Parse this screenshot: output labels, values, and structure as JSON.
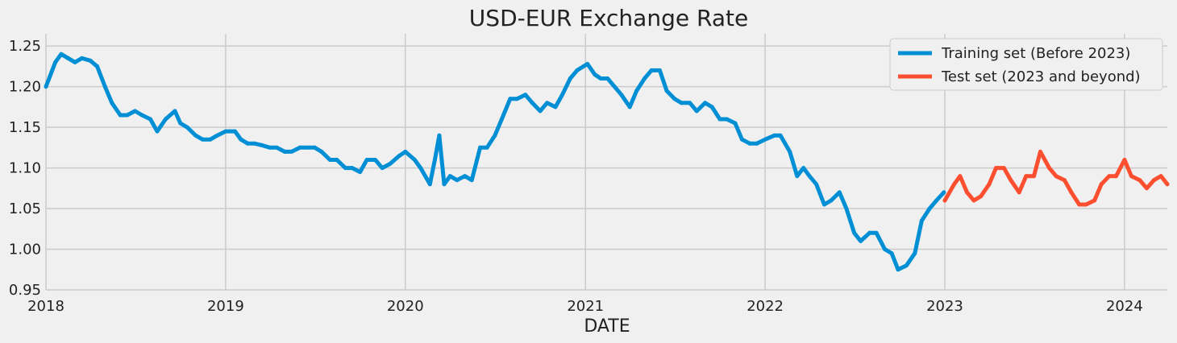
{
  "chart_data": {
    "type": "line",
    "title": "USD-EUR Exchange Rate",
    "xlabel": "DATE",
    "ylabel": "",
    "ylim": [
      0.95,
      1.265
    ],
    "xlim": [
      "2018-01-01",
      "2024-03-28"
    ],
    "grid": true,
    "legend_position": "top-right",
    "x_ticks": [
      "2018",
      "2019",
      "2020",
      "2021",
      "2022",
      "2023",
      "2024"
    ],
    "y_ticks": [
      "0.95",
      "1.00",
      "1.05",
      "1.10",
      "1.15",
      "1.20",
      "1.25"
    ],
    "colors": {
      "training": "#008fd5",
      "test": "#fc4f30",
      "background": "#f0f0f0",
      "grid": "#cbcbcb"
    },
    "series": [
      {
        "name": "Training set (Before 2023)",
        "x": [
          "2018-01-01",
          "2018-01-20",
          "2018-02-01",
          "2018-02-15",
          "2018-03-01",
          "2018-03-15",
          "2018-04-01",
          "2018-04-15",
          "2018-05-01",
          "2018-05-15",
          "2018-06-01",
          "2018-06-15",
          "2018-07-01",
          "2018-07-15",
          "2018-08-01",
          "2018-08-15",
          "2018-09-01",
          "2018-09-20",
          "2018-10-01",
          "2018-10-15",
          "2018-11-01",
          "2018-11-15",
          "2018-12-01",
          "2018-12-15",
          "2019-01-01",
          "2019-01-20",
          "2019-02-01",
          "2019-02-15",
          "2019-03-01",
          "2019-03-15",
          "2019-04-01",
          "2019-04-15",
          "2019-05-01",
          "2019-05-15",
          "2019-06-01",
          "2019-06-20",
          "2019-07-01",
          "2019-07-15",
          "2019-08-01",
          "2019-08-15",
          "2019-09-01",
          "2019-09-15",
          "2019-10-01",
          "2019-10-15",
          "2019-11-01",
          "2019-11-15",
          "2019-12-01",
          "2019-12-20",
          "2020-01-01",
          "2020-01-20",
          "2020-02-01",
          "2020-02-20",
          "2020-03-01",
          "2020-03-10",
          "2020-03-20",
          "2020-04-01",
          "2020-04-15",
          "2020-05-01",
          "2020-05-15",
          "2020-06-01",
          "2020-06-15",
          "2020-07-01",
          "2020-07-15",
          "2020-08-01",
          "2020-08-15",
          "2020-09-01",
          "2020-09-15",
          "2020-10-01",
          "2020-10-15",
          "2020-11-01",
          "2020-11-15",
          "2020-12-01",
          "2020-12-15",
          "2021-01-05",
          "2021-01-20",
          "2021-02-01",
          "2021-02-15",
          "2021-03-01",
          "2021-03-15",
          "2021-04-01",
          "2021-04-15",
          "2021-05-01",
          "2021-05-15",
          "2021-06-01",
          "2021-06-15",
          "2021-07-01",
          "2021-07-15",
          "2021-08-01",
          "2021-08-15",
          "2021-09-01",
          "2021-09-15",
          "2021-10-01",
          "2021-10-15",
          "2021-11-01",
          "2021-11-15",
          "2021-12-01",
          "2021-12-15",
          "2022-01-01",
          "2022-01-20",
          "2022-02-01",
          "2022-02-20",
          "2022-03-07",
          "2022-03-20",
          "2022-04-01",
          "2022-04-15",
          "2022-05-01",
          "2022-05-15",
          "2022-06-01",
          "2022-06-15",
          "2022-07-01",
          "2022-07-14",
          "2022-08-01",
          "2022-08-15",
          "2022-09-01",
          "2022-09-15",
          "2022-09-28",
          "2022-10-15",
          "2022-11-01",
          "2022-11-15",
          "2022-12-01",
          "2022-12-15",
          "2022-12-30"
        ],
        "y": [
          1.2,
          1.23,
          1.24,
          1.235,
          1.23,
          1.235,
          1.232,
          1.225,
          1.2,
          1.18,
          1.165,
          1.165,
          1.17,
          1.165,
          1.16,
          1.145,
          1.16,
          1.17,
          1.155,
          1.15,
          1.14,
          1.135,
          1.135,
          1.14,
          1.145,
          1.145,
          1.135,
          1.13,
          1.13,
          1.128,
          1.125,
          1.125,
          1.12,
          1.12,
          1.125,
          1.125,
          1.125,
          1.12,
          1.11,
          1.11,
          1.1,
          1.1,
          1.095,
          1.11,
          1.11,
          1.1,
          1.105,
          1.115,
          1.12,
          1.11,
          1.1,
          1.08,
          1.11,
          1.14,
          1.08,
          1.09,
          1.085,
          1.09,
          1.085,
          1.125,
          1.125,
          1.14,
          1.16,
          1.185,
          1.185,
          1.19,
          1.18,
          1.17,
          1.18,
          1.175,
          1.19,
          1.21,
          1.22,
          1.228,
          1.215,
          1.21,
          1.21,
          1.2,
          1.19,
          1.175,
          1.195,
          1.21,
          1.22,
          1.22,
          1.195,
          1.185,
          1.18,
          1.18,
          1.17,
          1.18,
          1.175,
          1.16,
          1.16,
          1.155,
          1.135,
          1.13,
          1.13,
          1.135,
          1.14,
          1.14,
          1.12,
          1.09,
          1.1,
          1.09,
          1.08,
          1.055,
          1.06,
          1.07,
          1.05,
          1.02,
          1.01,
          1.02,
          1.02,
          1.0,
          0.995,
          0.975,
          0.98,
          0.995,
          1.035,
          1.05,
          1.06,
          1.07
        ]
      },
      {
        "name": "Test set (2023 and beyond)",
        "x": [
          "2023-01-01",
          "2023-01-20",
          "2023-02-01",
          "2023-02-15",
          "2023-03-01",
          "2023-03-15",
          "2023-04-01",
          "2023-04-15",
          "2023-05-01",
          "2023-05-15",
          "2023-06-01",
          "2023-06-15",
          "2023-07-01",
          "2023-07-14",
          "2023-08-01",
          "2023-08-15",
          "2023-09-01",
          "2023-09-15",
          "2023-10-01",
          "2023-10-15",
          "2023-11-01",
          "2023-11-15",
          "2023-12-01",
          "2023-12-15",
          "2024-01-01",
          "2024-01-15",
          "2024-02-01",
          "2024-02-15",
          "2024-03-01",
          "2024-03-15",
          "2024-03-28"
        ],
        "y": [
          1.06,
          1.08,
          1.09,
          1.07,
          1.06,
          1.065,
          1.08,
          1.1,
          1.1,
          1.085,
          1.07,
          1.09,
          1.09,
          1.12,
          1.1,
          1.09,
          1.085,
          1.07,
          1.055,
          1.055,
          1.06,
          1.08,
          1.09,
          1.09,
          1.11,
          1.09,
          1.085,
          1.075,
          1.085,
          1.09,
          1.08
        ]
      }
    ]
  }
}
